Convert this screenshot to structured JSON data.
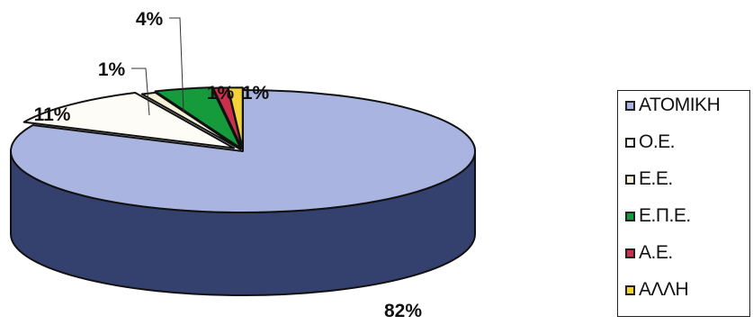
{
  "chart_data": {
    "type": "pie",
    "style": "3d-exploded",
    "legend_position": "right",
    "slices": [
      {
        "label": "ΑΤΟΜΙΚΗ",
        "value": 82,
        "value_label": "82%",
        "color": "#a9b4e0",
        "side_color": "#34406e"
      },
      {
        "label": "Ο.Ε.",
        "value": 11,
        "value_label": "11%",
        "color": "#fdfcf6",
        "side_color": "#c8c4b8"
      },
      {
        "label": "Ε.Ε.",
        "value": 1,
        "value_label": "1%",
        "color": "#f6f0d8",
        "side_color": "#b8b09a"
      },
      {
        "label": "Ε.Π.Ε.",
        "value": 4,
        "value_label": "4%",
        "color": "#159a3c",
        "side_color": "#0b5a22"
      },
      {
        "label": "Α.Ε.",
        "value": 1,
        "value_label": "1%",
        "color": "#c8304c",
        "side_color": "#7a1a2c"
      },
      {
        "label": "ΑΛΛΗ",
        "value": 1,
        "value_label": "1%",
        "color": "#f4d23a",
        "side_color": "#a48c1e"
      }
    ]
  }
}
